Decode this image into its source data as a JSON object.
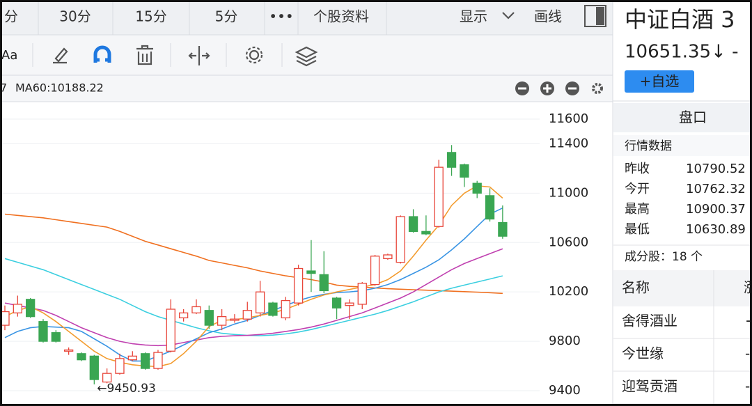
{
  "toolbar": {
    "tabs": [
      "分",
      "30分",
      "15分",
      "5分",
      "•••",
      "个股资料"
    ],
    "display": "显示",
    "draw": "画线",
    "font_icon": "Aa"
  },
  "chart_data": {
    "type": "candlestick",
    "ma_prefix": "7",
    "ma_label": "MA60:10188.22",
    "annotation": "←9450.93",
    "up_color": "#e8463a",
    "down_color": "#3aa652",
    "grid": true,
    "ylim": [
      9304,
      11730
    ],
    "yticks": [
      9400,
      9800,
      10200,
      10600,
      11000,
      11400,
      11600
    ],
    "open": [
      9930,
      10030,
      10140,
      9960,
      9870,
      9720,
      9700,
      9680,
      9470,
      9540,
      9650,
      9700,
      9580,
      9720,
      9990,
      10030,
      10050,
      9930,
      9970,
      9980,
      10030,
      10110,
      9990,
      10110,
      10370,
      10340,
      10150,
      10090,
      10100,
      10260,
      10470,
      10440,
      10810,
      10690,
      10730,
      11330,
      11230,
      11080,
      10980,
      10762.32
    ],
    "high": [
      10090,
      10170,
      10150,
      9980,
      9890,
      9750,
      9710,
      9690,
      9580,
      9700,
      9720,
      9710,
      9730,
      10140,
      10060,
      10140,
      10090,
      10060,
      10020,
      10120,
      10290,
      10120,
      10160,
      10420,
      10620,
      10530,
      10160,
      10140,
      10280,
      10500,
      10510,
      10820,
      10870,
      10820,
      11270,
      11390,
      11240,
      11100,
      11040,
      10900.37
    ],
    "low": [
      9890,
      10000,
      9990,
      9790,
      9790,
      9690,
      9640,
      9450.93,
      9460,
      9530,
      9640,
      9570,
      9570,
      9710,
      9960,
      10020,
      9900,
      9890,
      9950,
      9960,
      10000,
      10000,
      9970,
      10090,
      10200,
      10190,
      9980,
      9980,
      10060,
      10250,
      10460,
      10430,
      10680,
      10660,
      10720,
      11140,
      11050,
      10960,
      10770,
      10630.89
    ],
    "close": [
      10040,
      10100,
      10000,
      9800,
      9800,
      9730,
      9650,
      9490,
      9540,
      9660,
      9680,
      9580,
      9710,
      10060,
      10030,
      10080,
      9930,
      10000,
      9980,
      10050,
      10200,
      10010,
      10130,
      10390,
      10350,
      10210,
      10070,
      10110,
      10270,
      10490,
      10500,
      10810,
      10690,
      10670,
      11210,
      11210,
      11130,
      11000,
      10790.52,
      10651.35
    ],
    "series": [
      {
        "color": "#f07020",
        "values": [
          10830,
          10820,
          10810,
          10800,
          10785,
          10770,
          10755,
          10740,
          10725,
          10690,
          10650,
          10610,
          10580,
          10550,
          10520,
          10490,
          10455,
          10435,
          10415,
          10395,
          10370,
          10350,
          10330,
          10315,
          10300,
          10280,
          10255,
          10245,
          10240,
          10232,
          10226,
          10222,
          10218,
          10214,
          10210,
          10206,
          10202,
          10198,
          10194,
          10188.22
        ]
      },
      {
        "color": "#3ccfe0",
        "values": [
          10470,
          10440,
          10410,
          10380,
          10340,
          10300,
          10260,
          10220,
          10180,
          10140,
          10090,
          10040,
          10000,
          9970,
          9940,
          9910,
          9885,
          9865,
          9855,
          9848,
          9845,
          9850,
          9860,
          9875,
          9895,
          9920,
          9945,
          9970,
          9995,
          10020,
          10050,
          10085,
          10120,
          10160,
          10200,
          10230,
          10255,
          10280,
          10305,
          10330
        ]
      },
      {
        "color": "#c040b0",
        "values": [
          10110,
          10090,
          10070,
          10050,
          10010,
          9960,
          9910,
          9870,
          9830,
          9800,
          9780,
          9770,
          9765,
          9770,
          9790,
          9810,
          9830,
          9840,
          9845,
          9848,
          9855,
          9865,
          9880,
          9895,
          9915,
          9940,
          9970,
          10000,
          10030,
          10070,
          10110,
          10150,
          10200,
          10260,
          10320,
          10380,
          10430,
          10470,
          10510,
          10550
        ]
      },
      {
        "color": "#3a95e4",
        "values": [
          9830,
          9880,
          9910,
          9920,
          9915,
          9910,
          9880,
          9820,
          9760,
          9690,
          9640,
          9640,
          9680,
          9720,
          9770,
          9820,
          9870,
          9900,
          9940,
          9970,
          10010,
          10050,
          10090,
          10130,
          10160,
          10180,
          10195,
          10200,
          10210,
          10230,
          10260,
          10300,
          10350,
          10400,
          10460,
          10540,
          10630,
          10730,
          10830,
          10880
        ]
      },
      {
        "color": "#f39c2f",
        "values": [
          10000,
          10050,
          10080,
          10030,
          9960,
          9880,
          9800,
          9720,
          9660,
          9630,
          9610,
          9600,
          9595,
          9620,
          9700,
          9800,
          9920,
          9970,
          9975,
          9990,
          10010,
          10030,
          10060,
          10100,
          10140,
          10175,
          10200,
          10220,
          10240,
          10260,
          10300,
          10370,
          10490,
          10620,
          10740,
          10900,
          11000,
          11060,
          11050,
          10960
        ]
      }
    ]
  },
  "panel": {
    "title": "中证白酒 3",
    "price": "10651.35↓ -",
    "add_button": "+自选",
    "tab": "盘口",
    "section": "行情数据",
    "quotes": [
      {
        "label": "昨收",
        "value": "10790.52",
        "color": "#222222"
      },
      {
        "label": "今开",
        "value": "10762.32",
        "color": "#3aa652"
      },
      {
        "label": "最高",
        "value": "10900.37",
        "color": "#e8463a"
      },
      {
        "label": "最低",
        "value": "10630.89",
        "color": "#3aa652"
      }
    ],
    "constituents": "成分股：18 个",
    "table": {
      "headers": [
        "名称",
        "涨"
      ],
      "rows": [
        {
          "name": "舍得酒业",
          "change": "+",
          "color": "#e8463a"
        },
        {
          "name": "今世缘",
          "change": "-",
          "color": "#3aa652"
        },
        {
          "name": "迎驾贡酒",
          "change": "-",
          "color": "#3aa652"
        }
      ]
    }
  }
}
